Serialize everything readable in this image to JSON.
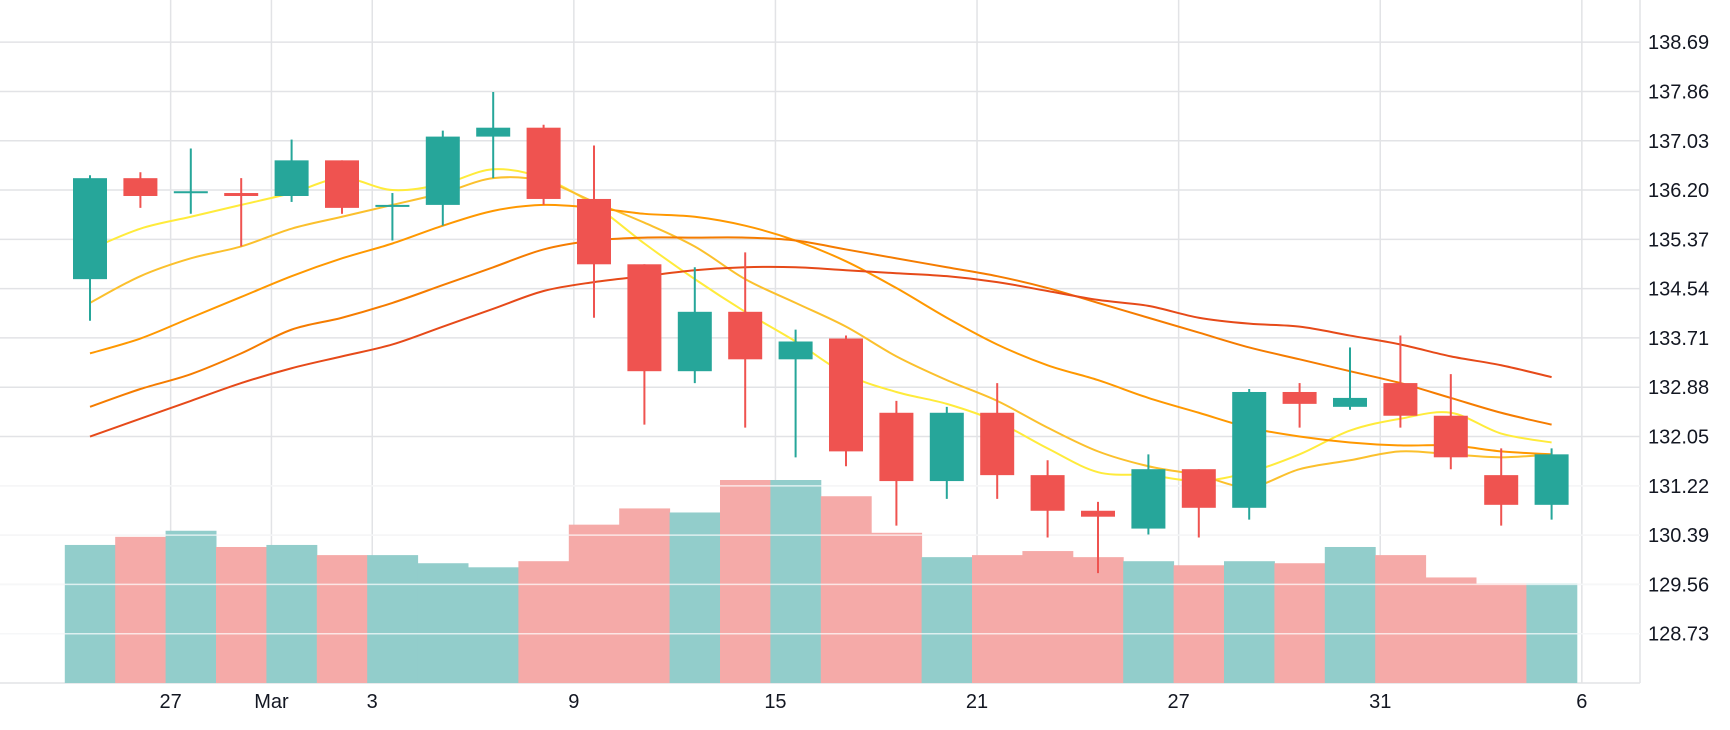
{
  "chart_data": {
    "type": "candlestick",
    "x_tick_labels": [
      "27",
      "Mar",
      "3",
      "9",
      "15",
      "21",
      "27",
      "31",
      "6"
    ],
    "y_tick_labels": [
      "138.69",
      "137.86",
      "137.03",
      "136.20",
      "135.37",
      "134.54",
      "133.71",
      "132.88",
      "132.05",
      "131.22",
      "130.39",
      "129.56",
      "128.73"
    ],
    "ylim": [
      127.9,
      139.4
    ],
    "grid": true,
    "colors": {
      "up": "#26a69a",
      "down": "#ef5350",
      "volume_up": "#92cdcb",
      "volume_down": "#f5aaa8",
      "grid": "#e2e3e6",
      "ma_series": [
        "#ffeb3b",
        "#fbc02d",
        "#ff9800",
        "#f57c00",
        "#e64a19"
      ]
    },
    "candles": [
      {
        "open": 134.7,
        "high": 136.45,
        "low": 134.0,
        "close": 136.4,
        "volume": 0.68
      },
      {
        "open": 136.4,
        "high": 136.5,
        "low": 135.9,
        "close": 136.1,
        "volume": 0.72
      },
      {
        "open": 136.18,
        "high": 136.9,
        "low": 135.8,
        "close": 136.18,
        "volume": 0.75
      },
      {
        "open": 136.15,
        "high": 136.4,
        "low": 135.25,
        "close": 136.1,
        "volume": 0.67
      },
      {
        "open": 136.1,
        "high": 137.05,
        "low": 136.0,
        "close": 136.7,
        "volume": 0.68
      },
      {
        "open": 136.7,
        "high": 136.7,
        "low": 135.8,
        "close": 135.9,
        "volume": 0.63
      },
      {
        "open": 135.95,
        "high": 136.15,
        "low": 135.35,
        "close": 135.95,
        "volume": 0.63
      },
      {
        "open": 135.95,
        "high": 137.2,
        "low": 135.6,
        "close": 137.1,
        "volume": 0.59
      },
      {
        "open": 137.1,
        "high": 137.85,
        "low": 136.4,
        "close": 137.25,
        "volume": 0.57
      },
      {
        "open": 137.25,
        "high": 137.3,
        "low": 135.95,
        "close": 136.05,
        "volume": 0.6
      },
      {
        "open": 136.05,
        "high": 136.95,
        "low": 134.05,
        "close": 134.95,
        "volume": 0.78
      },
      {
        "open": 134.95,
        "high": 134.95,
        "low": 132.25,
        "close": 133.15,
        "volume": 0.86
      },
      {
        "open": 133.15,
        "high": 134.9,
        "low": 132.95,
        "close": 134.15,
        "volume": 0.84
      },
      {
        "open": 134.15,
        "high": 135.15,
        "low": 132.2,
        "close": 133.35,
        "volume": 1.0
      },
      {
        "open": 133.35,
        "high": 133.85,
        "low": 131.7,
        "close": 133.65,
        "volume": 1.0
      },
      {
        "open": 133.7,
        "high": 133.75,
        "low": 131.55,
        "close": 131.8,
        "volume": 0.92
      },
      {
        "open": 132.45,
        "high": 132.65,
        "low": 130.55,
        "close": 131.3,
        "volume": 0.74
      },
      {
        "open": 131.3,
        "high": 132.55,
        "low": 131.0,
        "close": 132.45,
        "volume": 0.62
      },
      {
        "open": 132.45,
        "high": 132.95,
        "low": 131.0,
        "close": 131.4,
        "volume": 0.63
      },
      {
        "open": 131.4,
        "high": 131.65,
        "low": 130.35,
        "close": 130.8,
        "volume": 0.65
      },
      {
        "open": 130.8,
        "high": 130.95,
        "low": 129.75,
        "close": 130.7,
        "volume": 0.62
      },
      {
        "open": 130.5,
        "high": 131.75,
        "low": 130.4,
        "close": 131.5,
        "volume": 0.6
      },
      {
        "open": 131.5,
        "high": 131.5,
        "low": 130.35,
        "close": 130.85,
        "volume": 0.58
      },
      {
        "open": 130.85,
        "high": 132.85,
        "low": 130.65,
        "close": 132.8,
        "volume": 0.6
      },
      {
        "open": 132.8,
        "high": 132.95,
        "low": 132.2,
        "close": 132.6,
        "volume": 0.59
      },
      {
        "open": 132.55,
        "high": 133.55,
        "low": 132.5,
        "close": 132.7,
        "volume": 0.67
      },
      {
        "open": 132.95,
        "high": 133.75,
        "low": 132.2,
        "close": 132.4,
        "volume": 0.63
      },
      {
        "open": 132.4,
        "high": 133.1,
        "low": 131.5,
        "close": 131.7,
        "volume": 0.52
      },
      {
        "open": 131.4,
        "high": 131.85,
        "low": 130.55,
        "close": 130.9,
        "volume": 0.49
      },
      {
        "open": 130.9,
        "high": 131.85,
        "low": 130.65,
        "close": 131.75,
        "volume": 0.49
      }
    ],
    "moving_averages": [
      {
        "values": [
          135.2,
          135.55,
          135.75,
          135.95,
          136.15,
          136.4,
          136.2,
          136.3,
          136.55,
          136.4,
          135.95,
          135.3,
          134.7,
          134.15,
          133.65,
          133.1,
          132.8,
          132.6,
          132.3,
          131.85,
          131.45,
          131.4,
          131.3,
          131.45,
          131.75,
          132.15,
          132.35,
          132.45,
          132.1,
          131.95
        ]
      },
      {
        "values": [
          134.3,
          134.75,
          135.05,
          135.25,
          135.55,
          135.75,
          135.95,
          136.15,
          136.4,
          136.35,
          136.0,
          135.65,
          135.25,
          134.7,
          134.3,
          133.9,
          133.4,
          133.0,
          132.65,
          132.2,
          131.8,
          131.55,
          131.4,
          131.2,
          131.5,
          131.65,
          131.8,
          131.75,
          131.7,
          131.75
        ]
      },
      {
        "values": [
          133.45,
          133.7,
          134.05,
          134.4,
          134.75,
          135.05,
          135.3,
          135.6,
          135.85,
          135.95,
          135.9,
          135.8,
          135.75,
          135.6,
          135.35,
          135.0,
          134.55,
          134.05,
          133.6,
          133.25,
          133.0,
          132.7,
          132.45,
          132.2,
          132.05,
          131.95,
          131.9,
          131.9,
          131.8,
          131.75
        ]
      },
      {
        "values": [
          132.55,
          132.85,
          133.1,
          133.45,
          133.85,
          134.05,
          134.3,
          134.6,
          134.9,
          135.2,
          135.35,
          135.4,
          135.4,
          135.4,
          135.35,
          135.2,
          135.05,
          134.9,
          134.75,
          134.55,
          134.3,
          134.05,
          133.8,
          133.55,
          133.35,
          133.15,
          132.95,
          132.7,
          132.45,
          132.25
        ]
      },
      {
        "values": [
          132.05,
          132.35,
          132.65,
          132.95,
          133.2,
          133.4,
          133.6,
          133.9,
          134.2,
          134.5,
          134.65,
          134.75,
          134.85,
          134.9,
          134.9,
          134.85,
          134.8,
          134.75,
          134.65,
          134.5,
          134.35,
          134.25,
          134.05,
          133.95,
          133.9,
          133.75,
          133.6,
          133.4,
          133.25,
          133.05
        ]
      }
    ],
    "x_tick_indices": [
      1.6,
      3.6,
      5.6,
      9.6,
      13.6,
      17.6,
      21.6,
      25.6,
      29.6
    ]
  }
}
